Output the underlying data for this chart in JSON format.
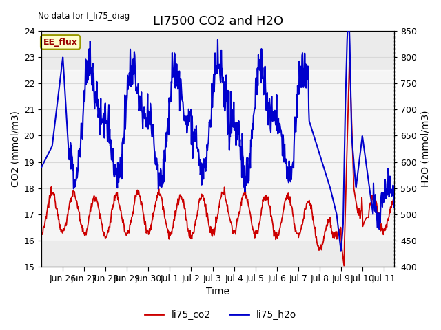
{
  "title": "LI7500 CO2 and H2O",
  "top_left_text": "No data for f_li75_diag",
  "xlabel": "Time",
  "ylabel_left": "CO2 (mmol/m3)",
  "ylabel_right": "H2O (mmol/m3)",
  "ylim_left": [
    15.0,
    24.0
  ],
  "ylim_right": [
    400,
    850
  ],
  "yticks_left": [
    15.0,
    16.0,
    17.0,
    18.0,
    19.0,
    20.0,
    21.0,
    22.0,
    23.0,
    24.0
  ],
  "yticks_right": [
    400,
    450,
    500,
    550,
    600,
    650,
    700,
    750,
    800,
    850
  ],
  "xtick_labels": [
    "Jun 26",
    "Jun 27",
    "Jun 28",
    "Jun 29",
    "Jun 30",
    "Jul 1",
    "Jul 2",
    "Jul 3",
    "Jul 4",
    "Jul 5",
    "Jul 6",
    "Jul 7",
    "Jul 8",
    "Jul 9",
    "Jul 10",
    "Jul 11"
  ],
  "color_co2": "#cc0000",
  "color_h2o": "#0000cc",
  "legend_label_co2": "li75_co2",
  "legend_label_h2o": "li75_h2o",
  "annotation_box": "EE_flux",
  "annotation_box_bg": "#ffffcc",
  "annotation_box_border": "#999900",
  "grid_color": "#d8d8d8",
  "bg_color": "#ebebeb",
  "white_band_co2": [
    16.0,
    22.5
  ],
  "title_fontsize": 13,
  "label_fontsize": 10,
  "tick_fontsize": 9,
  "xlim": [
    0,
    16.5
  ],
  "xtick_positions": [
    1,
    2,
    3,
    4,
    5,
    6,
    7,
    8,
    9,
    10,
    11,
    12,
    13,
    14,
    15,
    16
  ]
}
